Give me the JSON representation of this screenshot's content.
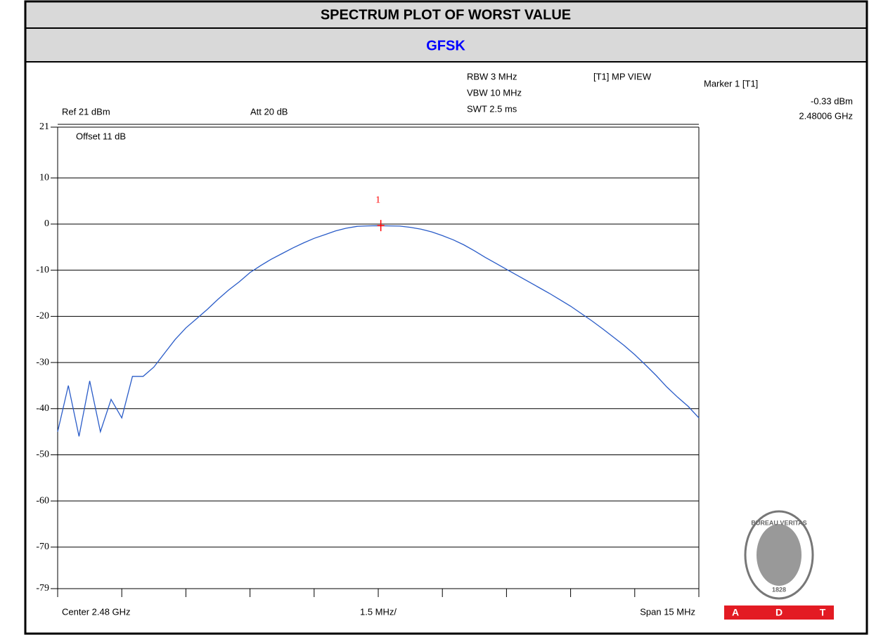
{
  "chart_data": {
    "type": "line",
    "title": "SPECTRUM PLOT OF WORST VALUE",
    "subtitle": "GFSK",
    "settings": {
      "rbw": "RBW 3 MHz",
      "vbw": "VBW 10 MHz",
      "swt": "SWT 2.5 ms",
      "view": "[T1] MP VIEW",
      "ref": "Ref 21 dBm",
      "att": "Att 20 dB",
      "offset": "Offset 11 dB"
    },
    "marker": {
      "name": "Marker 1 [T1]",
      "label": "1",
      "x": 2.48006,
      "y": -0.33,
      "value_labels": [
        "2.48006 GHz",
        "-0.33 dBm"
      ],
      "color": "#ff0000"
    },
    "x_labels": {
      "center": "Center 2.48 GHz",
      "per_div": "1.5 MHz/",
      "span": "Span 15 MHz"
    },
    "xlim": [
      2.4725,
      2.4875
    ],
    "xticks": [
      2.4725,
      2.474,
      2.4755,
      2.477,
      2.4785,
      2.48,
      2.4815,
      2.483,
      2.4845,
      2.486,
      2.4875
    ],
    "ylim": [
      -79,
      21
    ],
    "yticks": [
      21,
      10,
      0,
      -10,
      -20,
      -30,
      -40,
      -50,
      -60,
      -70,
      -79
    ],
    "grid": true,
    "series": [
      {
        "color": "#2a5cc8",
        "x": [
          2.4725,
          2.47275,
          2.473,
          2.47325,
          2.4735,
          2.47375,
          2.474,
          2.47425,
          2.4745,
          2.47475,
          2.475,
          2.47525,
          2.4755,
          2.47575,
          2.476,
          2.47625,
          2.4765,
          2.47675,
          2.477,
          2.47725,
          2.4775,
          2.47775,
          2.478,
          2.47825,
          2.4785,
          2.47875,
          2.479,
          2.47925,
          2.4795,
          2.47975,
          2.48,
          2.48025,
          2.4805,
          2.48075,
          2.481,
          2.48125,
          2.4815,
          2.48175,
          2.482,
          2.48225,
          2.4825,
          2.48275,
          2.483,
          2.48325,
          2.4835,
          2.48375,
          2.484,
          2.48425,
          2.4845,
          2.48475,
          2.485,
          2.48525,
          2.4855,
          2.48575,
          2.486,
          2.48625,
          2.4865,
          2.48675,
          2.487,
          2.48725,
          2.4875
        ],
        "values": [
          -45,
          -35,
          -46,
          -34,
          -45,
          -38,
          -42,
          -33,
          -33,
          -31,
          -28,
          -25,
          -22.5,
          -20.5,
          -18.5,
          -16.3,
          -14.3,
          -12.5,
          -10.5,
          -9,
          -7.6,
          -6.4,
          -5.2,
          -4.1,
          -3.1,
          -2.3,
          -1.5,
          -0.9,
          -0.5,
          -0.4,
          -0.35,
          -0.4,
          -0.45,
          -0.7,
          -1.1,
          -1.7,
          -2.5,
          -3.4,
          -4.5,
          -5.8,
          -7.2,
          -8.5,
          -9.8,
          -11.1,
          -12.4,
          -13.7,
          -15,
          -16.4,
          -17.8,
          -19.4,
          -21,
          -22.7,
          -24.5,
          -26.3,
          -28.3,
          -30.5,
          -32.8,
          -35.3,
          -37.5,
          -39.5,
          -42
        ]
      }
    ],
    "logo": {
      "top": "BUREAU VERITAS",
      "year": "1828",
      "letters": [
        "A",
        "D",
        "T"
      ]
    }
  }
}
